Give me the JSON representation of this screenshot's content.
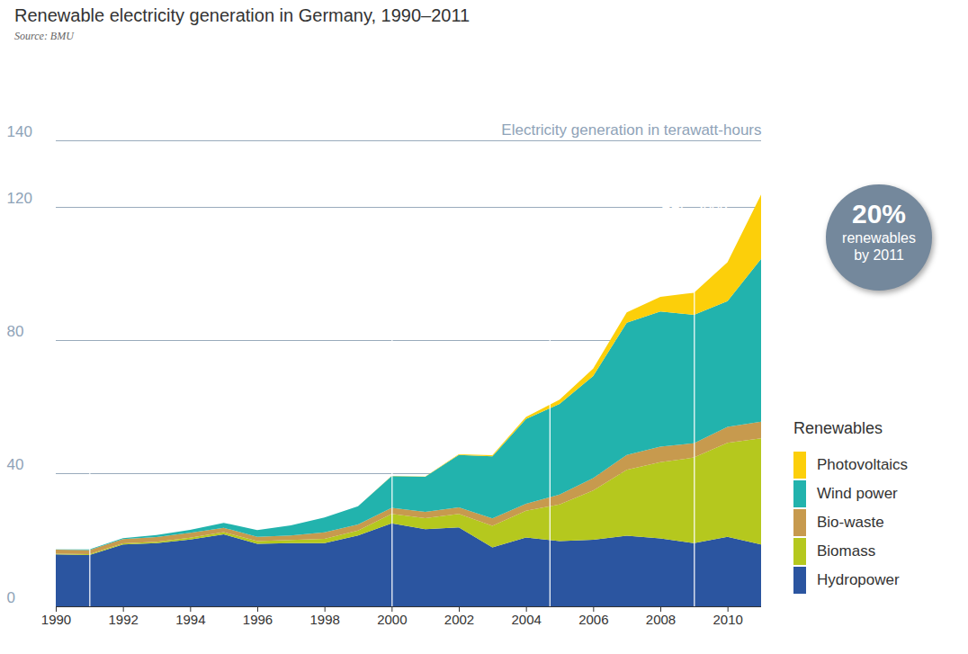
{
  "chart_data": {
    "type": "area",
    "title": "Renewable electricity generation in Germany, 1990–2011",
    "subtitle": "Source: BMU",
    "y_label": "Electricity generation in terawatt-hours",
    "legend_title": "Renewables",
    "legend": "right",
    "stacked": true,
    "grid": true,
    "x": [
      1990,
      1991,
      1992,
      1993,
      1994,
      1995,
      1996,
      1997,
      1998,
      1999,
      2000,
      2001,
      2002,
      2003,
      2004,
      2005,
      2006,
      2007,
      2008,
      2009,
      2010,
      2011
    ],
    "xlim": [
      1990,
      2011
    ],
    "xticks": [
      1990,
      1992,
      1994,
      1996,
      1998,
      2000,
      2002,
      2004,
      2006,
      2008,
      2010
    ],
    "ylim": [
      0,
      140
    ],
    "yticks": [
      0,
      40,
      80,
      120,
      140
    ],
    "series": [
      {
        "name": "Hydropower",
        "color": "#2b55a0",
        "values": [
          15.6,
          15.4,
          18.6,
          19.0,
          20.1,
          21.6,
          18.8,
          19.0,
          19.0,
          21.3,
          24.9,
          23.2,
          23.7,
          17.7,
          20.7,
          19.6,
          20.0,
          21.2,
          20.4,
          19.0,
          20.9,
          18.6
        ]
      },
      {
        "name": "Biomass",
        "color": "#b5c81e",
        "values": [
          0.2,
          0.3,
          0.3,
          0.4,
          0.5,
          0.7,
          0.8,
          0.9,
          1.3,
          1.5,
          2.9,
          3.3,
          4.1,
          6.5,
          8.0,
          11.0,
          14.8,
          19.8,
          22.9,
          25.7,
          28.2,
          31.9
        ]
      },
      {
        "name": "Bio-waste",
        "color": "#c79a4e",
        "values": [
          1.2,
          1.2,
          1.3,
          1.4,
          1.5,
          1.3,
          1.3,
          1.4,
          1.9,
          1.8,
          1.8,
          1.9,
          1.9,
          2.2,
          2.1,
          3.0,
          3.7,
          4.5,
          4.7,
          4.3,
          4.8,
          5.0
        ]
      },
      {
        "name": "Wind power",
        "color": "#22b3ad",
        "values": [
          0.1,
          0.2,
          0.3,
          0.6,
          0.9,
          1.5,
          2.0,
          3.0,
          4.5,
          5.5,
          9.5,
          10.5,
          15.8,
          18.7,
          25.5,
          27.2,
          30.7,
          39.7,
          40.6,
          38.6,
          37.8,
          48.9
        ]
      },
      {
        "name": "Photovoltaics",
        "color": "#fccf0a",
        "values": [
          0,
          0,
          0,
          0,
          0,
          0,
          0,
          0,
          0,
          0,
          0.1,
          0.1,
          0.2,
          0.3,
          0.6,
          1.3,
          2.2,
          3.1,
          4.4,
          6.6,
          11.7,
          19.3
        ]
      }
    ],
    "annotations": [
      {
        "x": 1991,
        "label": "Original\nfeed-in\ntariffs"
      },
      {
        "x": 2000,
        "label": "EEG 2000"
      },
      {
        "x": 2004.7,
        "label": "EEG 2004"
      },
      {
        "x": 2009,
        "label": "EEG 2009"
      }
    ],
    "badge": [
      "20%",
      "renewables",
      "by 2011"
    ]
  }
}
